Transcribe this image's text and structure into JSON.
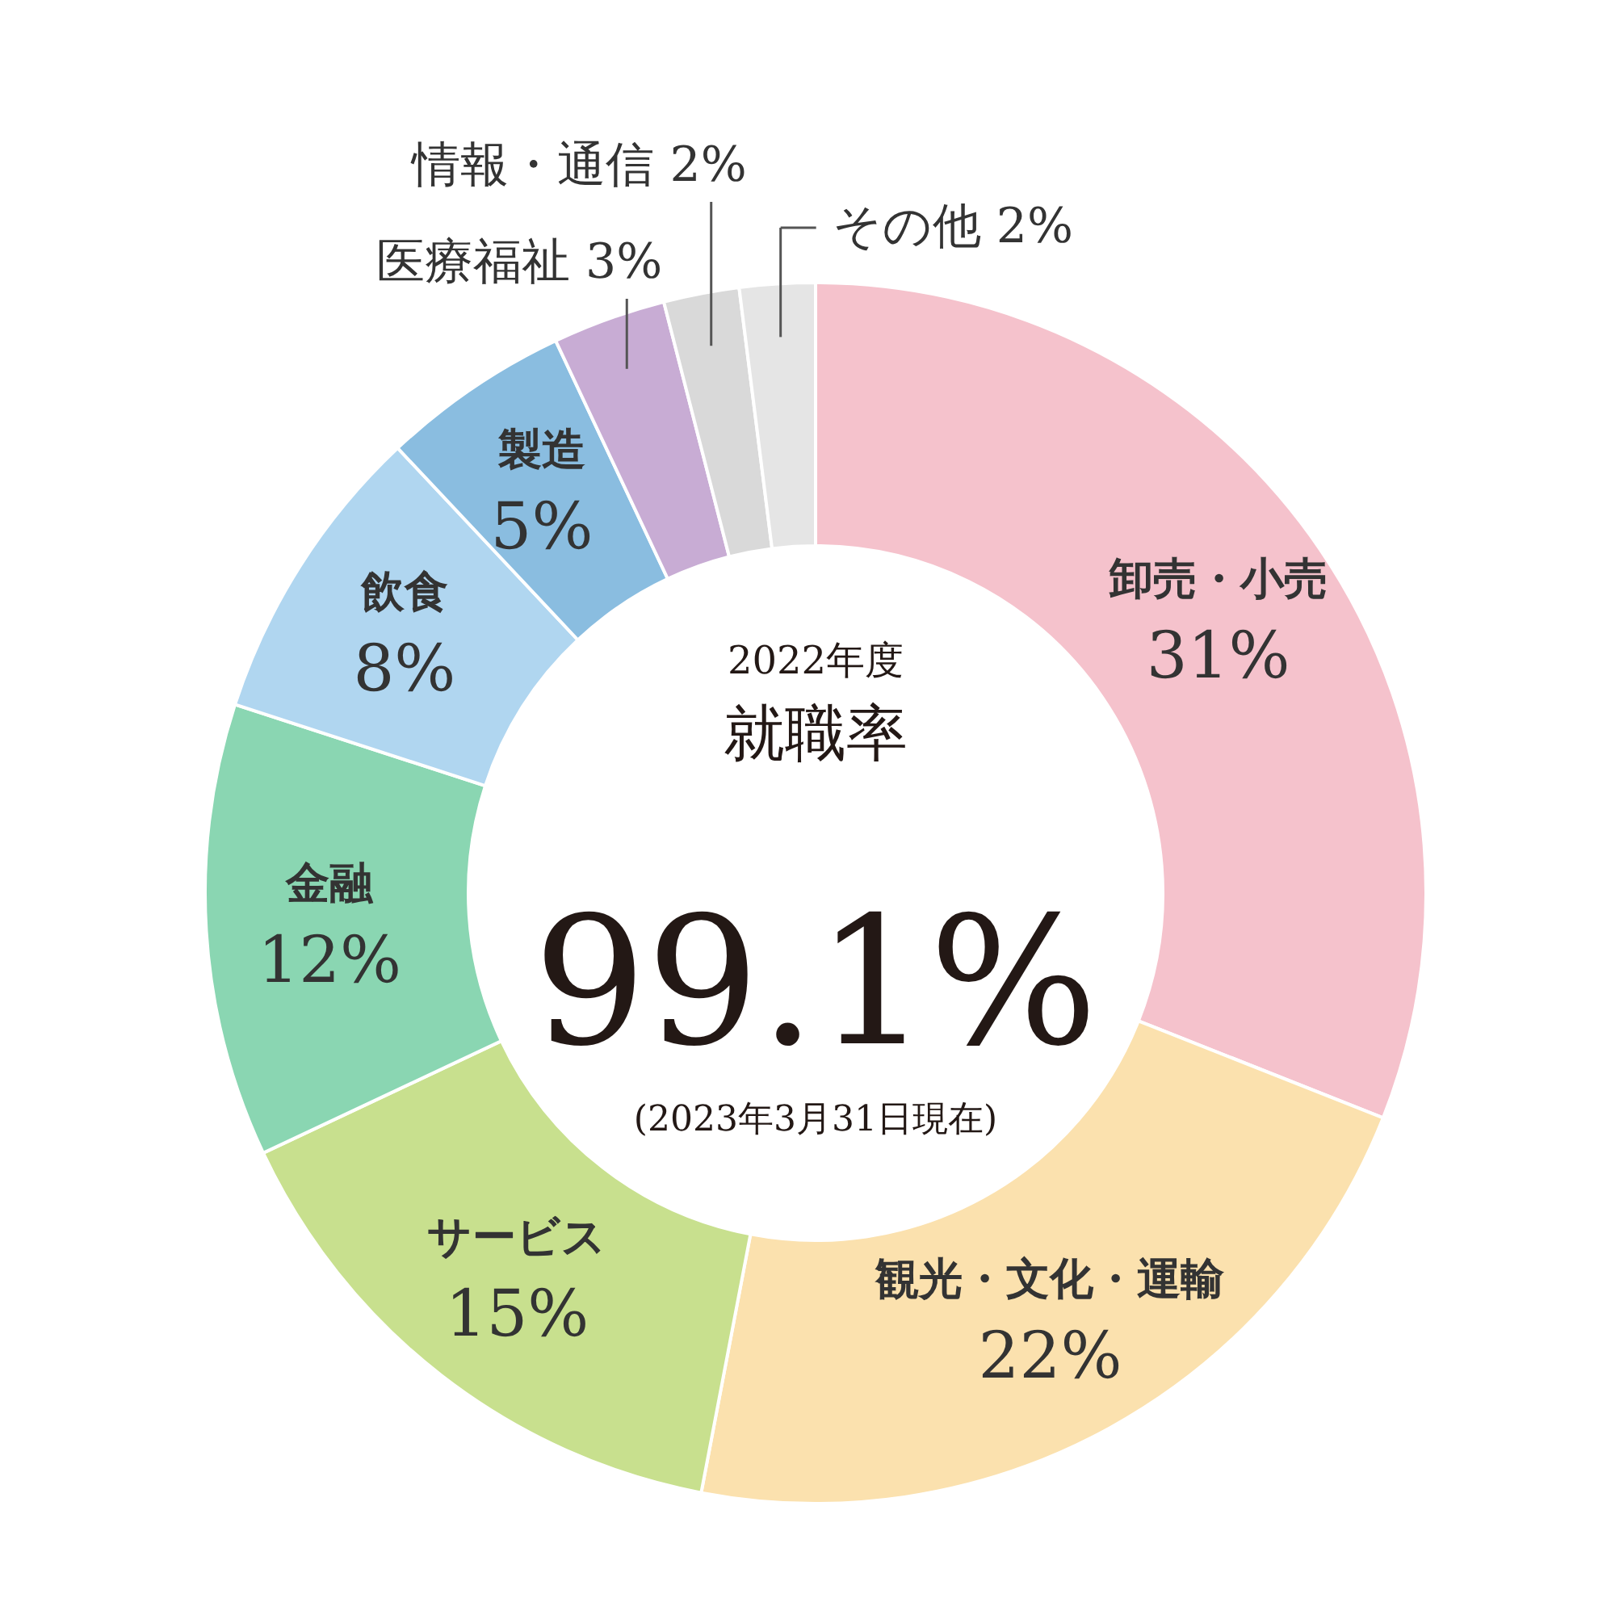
{
  "chart_data": {
    "type": "donut",
    "title": "就職率",
    "subtitle": "2022年度",
    "annotations": [
      "99.1%",
      "(2023年3月31日現在)"
    ],
    "categories": [
      "卸売・小売",
      "観光・文化・運輸",
      "サービス",
      "金融",
      "飲食",
      "製造",
      "医療福祉",
      "情報・通信",
      "その他"
    ],
    "values": [
      31,
      22,
      15,
      12,
      8,
      5,
      3,
      2,
      2
    ],
    "value_labels": [
      "31%",
      "22%",
      "15%",
      "12%",
      "8%",
      "5%",
      "3%",
      "2%",
      "2%"
    ],
    "colors": [
      "#f5c2cc",
      "#fbe1ae",
      "#c8e08e",
      "#8ad6b2",
      "#b0d6f0",
      "#8abde0",
      "#c8acd4",
      "#d9d9d9",
      "#e5e5e5"
    ]
  }
}
